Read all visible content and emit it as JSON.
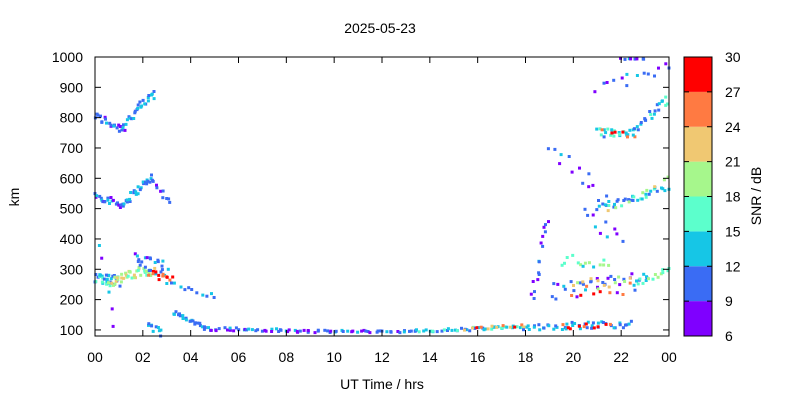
{
  "chart_data": {
    "type": "scatter",
    "title": "2025-05-23",
    "xlabel": "UT Time / hrs",
    "ylabel": "km",
    "xlim": [
      0,
      24
    ],
    "ylim": [
      80,
      1000
    ],
    "x_ticks": [
      "00",
      "02",
      "04",
      "06",
      "08",
      "10",
      "12",
      "14",
      "16",
      "18",
      "20",
      "22",
      "00"
    ],
    "y_ticks": [
      "100",
      "200",
      "300",
      "400",
      "500",
      "600",
      "700",
      "800",
      "900",
      "1000"
    ],
    "y_tick_values": [
      100,
      200,
      300,
      400,
      500,
      600,
      700,
      800,
      900,
      1000
    ],
    "grid": false,
    "colorbar": {
      "label": "SNR / dB",
      "range": [
        6,
        30
      ],
      "tick_labels": [
        "30",
        "27",
        "24",
        "21",
        "18",
        "15",
        "12",
        "9",
        "6"
      ],
      "levels": [
        {
          "from": 6,
          "to": 9,
          "color": "#7f00ff"
        },
        {
          "from": 9,
          "to": 12,
          "color": "#3a6cf4"
        },
        {
          "from": 12,
          "to": 15,
          "color": "#16c6e6"
        },
        {
          "from": 15,
          "to": 18,
          "color": "#5cffcc"
        },
        {
          "from": 18,
          "to": 21,
          "color": "#a6f78c"
        },
        {
          "from": 21,
          "to": 24,
          "color": "#f0c872"
        },
        {
          "from": 24,
          "to": 27,
          "color": "#ff7a42"
        },
        {
          "from": 27,
          "to": 30,
          "color": "#ff0000"
        }
      ]
    },
    "clusters": [
      {
        "x0": 0.0,
        "x1": 1.2,
        "y0": 805,
        "y1": 760,
        "snr": 10,
        "n": 20,
        "jx": 0.06,
        "jy": 15
      },
      {
        "x0": 1.2,
        "x1": 2.5,
        "y0": 780,
        "y1": 880,
        "snr": 12,
        "n": 26,
        "jx": 0.06,
        "jy": 18
      },
      {
        "x0": 0.0,
        "x1": 1.2,
        "y0": 545,
        "y1": 510,
        "snr": 10,
        "n": 22,
        "jx": 0.06,
        "jy": 12
      },
      {
        "x0": 1.2,
        "x1": 2.4,
        "y0": 520,
        "y1": 605,
        "snr": 12,
        "n": 24,
        "jx": 0.06,
        "jy": 12
      },
      {
        "x0": 2.4,
        "x1": 3.1,
        "y0": 590,
        "y1": 520,
        "snr": 10,
        "n": 10,
        "jx": 0.06,
        "jy": 12
      },
      {
        "x0": 0.0,
        "x1": 1.0,
        "y0": 275,
        "y1": 262,
        "snr": 13,
        "n": 28,
        "jx": 0.08,
        "jy": 18
      },
      {
        "x0": 0.6,
        "x1": 2.4,
        "y0": 260,
        "y1": 300,
        "snr": 20,
        "n": 40,
        "jx": 0.1,
        "jy": 18
      },
      {
        "x0": 1.7,
        "x1": 3.0,
        "y0": 330,
        "y1": 300,
        "snr": 11,
        "n": 24,
        "jx": 0.1,
        "jy": 28
      },
      {
        "x0": 2.3,
        "x1": 3.2,
        "y0": 285,
        "y1": 265,
        "snr": 26,
        "n": 12,
        "jx": 0.06,
        "jy": 12
      },
      {
        "x0": 3.0,
        "x1": 5.0,
        "y0": 260,
        "y1": 210,
        "snr": 11,
        "n": 12,
        "jx": 0.06,
        "jy": 10
      },
      {
        "x0": 0.2,
        "x1": 0.8,
        "y0": 380,
        "y1": 120,
        "snr": 10,
        "n": 6,
        "jx": 0.05,
        "jy": 10
      },
      {
        "x0": 2.2,
        "x1": 2.8,
        "y0": 120,
        "y1": 90,
        "snr": 12,
        "n": 10,
        "jx": 0.06,
        "jy": 12
      },
      {
        "x0": 3.3,
        "x1": 4.6,
        "y0": 160,
        "y1": 105,
        "snr": 12,
        "n": 22,
        "jx": 0.08,
        "jy": 8
      },
      {
        "x0": 4.6,
        "x1": 9.0,
        "y0": 105,
        "y1": 95,
        "snr": 10,
        "n": 40,
        "jx": 0.1,
        "jy": 6
      },
      {
        "x0": 9.0,
        "x1": 13.5,
        "y0": 95,
        "y1": 95,
        "snr": 10,
        "n": 36,
        "jx": 0.1,
        "jy": 4
      },
      {
        "x0": 13.5,
        "x1": 18.0,
        "y0": 95,
        "y1": 110,
        "snr": 14,
        "n": 40,
        "jx": 0.1,
        "jy": 6
      },
      {
        "x0": 15.5,
        "x1": 18.0,
        "y0": 100,
        "y1": 115,
        "snr": 25,
        "n": 12,
        "jx": 0.08,
        "jy": 6
      },
      {
        "x0": 18.0,
        "x1": 22.5,
        "y0": 110,
        "y1": 120,
        "snr": 12,
        "n": 44,
        "jx": 0.1,
        "jy": 12
      },
      {
        "x0": 19.5,
        "x1": 21.5,
        "y0": 110,
        "y1": 115,
        "snr": 28,
        "n": 10,
        "jx": 0.1,
        "jy": 8
      },
      {
        "x0": 18.3,
        "x1": 19.0,
        "y0": 200,
        "y1": 460,
        "snr": 10,
        "n": 16,
        "jx": 0.15,
        "jy": 20
      },
      {
        "x0": 19.0,
        "x1": 23.0,
        "y0": 230,
        "y1": 260,
        "snr": 10,
        "n": 30,
        "jx": 0.12,
        "jy": 30
      },
      {
        "x0": 20.0,
        "x1": 22.5,
        "y0": 250,
        "y1": 260,
        "snr": 22,
        "n": 14,
        "jx": 0.12,
        "jy": 20
      },
      {
        "x0": 19.5,
        "x1": 21.5,
        "y0": 330,
        "y1": 320,
        "snr": 17,
        "n": 14,
        "jx": 0.1,
        "jy": 20
      },
      {
        "x0": 20.0,
        "x1": 22.0,
        "y0": 220,
        "y1": 220,
        "snr": 28,
        "n": 6,
        "jx": 0.1,
        "jy": 8
      },
      {
        "x0": 22.5,
        "x1": 24.0,
        "y0": 250,
        "y1": 300,
        "snr": 17,
        "n": 16,
        "jx": 0.08,
        "jy": 10
      },
      {
        "x0": 19.0,
        "x1": 21.5,
        "y0": 700,
        "y1": 520,
        "snr": 10,
        "n": 14,
        "jx": 0.12,
        "jy": 30
      },
      {
        "x0": 20.5,
        "x1": 22.0,
        "y0": 470,
        "y1": 420,
        "snr": 10,
        "n": 10,
        "jx": 0.1,
        "jy": 30
      },
      {
        "x0": 21.0,
        "x1": 24.0,
        "y0": 500,
        "y1": 570,
        "snr": 13,
        "n": 30,
        "jx": 0.08,
        "jy": 12
      },
      {
        "x0": 21.5,
        "x1": 24.0,
        "y0": 490,
        "y1": 600,
        "snr": 20,
        "n": 10,
        "jx": 0.1,
        "jy": 8
      },
      {
        "x0": 21.0,
        "x1": 22.5,
        "y0": 750,
        "y1": 750,
        "snr": 14,
        "n": 22,
        "jx": 0.1,
        "jy": 14
      },
      {
        "x0": 21.3,
        "x1": 22.5,
        "y0": 760,
        "y1": 740,
        "snr": 27,
        "n": 6,
        "jx": 0.1,
        "jy": 8
      },
      {
        "x0": 22.5,
        "x1": 24.0,
        "y0": 760,
        "y1": 860,
        "snr": 13,
        "n": 22,
        "jx": 0.08,
        "jy": 18
      },
      {
        "x0": 21.0,
        "x1": 24.0,
        "y0": 900,
        "y1": 960,
        "snr": 10,
        "n": 14,
        "jx": 0.15,
        "jy": 30
      },
      {
        "x0": 22.0,
        "x1": 23.0,
        "y0": 995,
        "y1": 995,
        "snr": 11,
        "n": 8,
        "jx": 0.1,
        "jy": 3
      }
    ]
  }
}
